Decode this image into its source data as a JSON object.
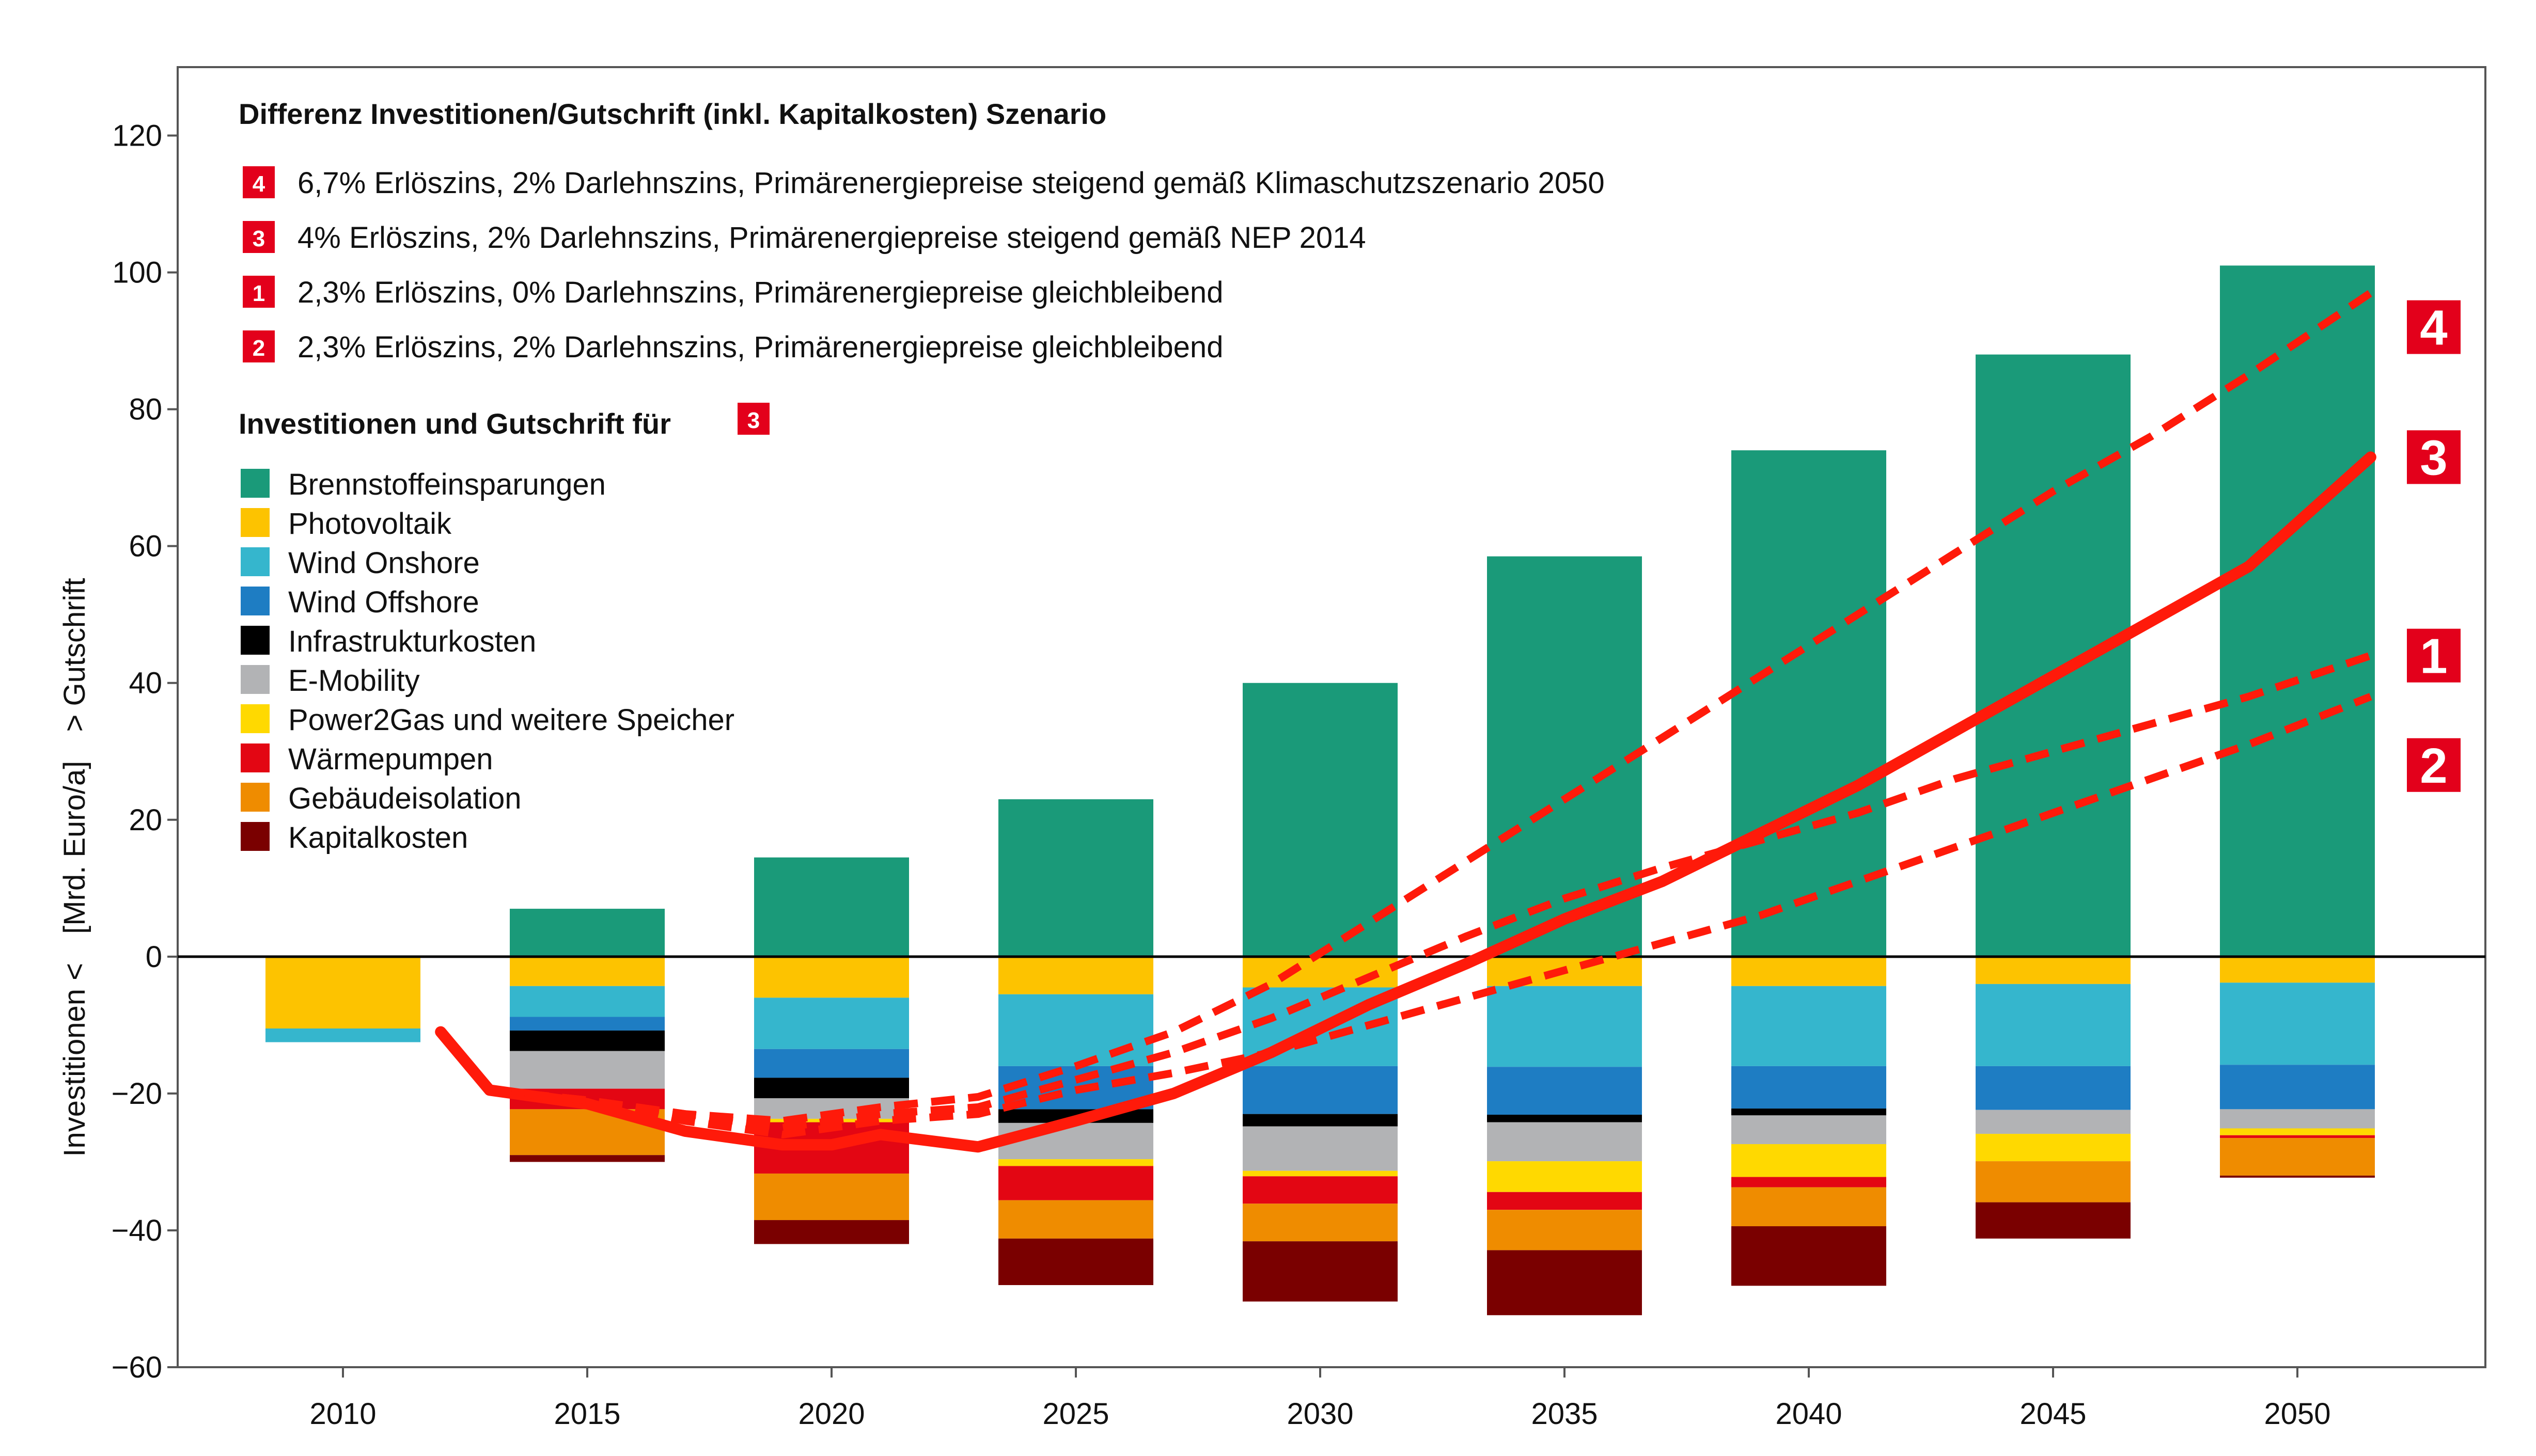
{
  "chart_data": {
    "type": "bar",
    "title": "Differenz Investitionen/Gutschrift (inkl. Kapitalkosten) Szenario",
    "ylabel_parts": [
      "Investitionen <",
      "[Mrd. Euro/a]",
      "> Gutschrift"
    ],
    "xlabel": "",
    "ylim": [
      -60,
      130
    ],
    "yticks": [
      -60,
      -40,
      -20,
      0,
      20,
      40,
      60,
      80,
      100,
      120
    ],
    "ytick_labels": [
      "−60",
      "−40",
      "−20",
      "0",
      "20",
      "40",
      "60",
      "80",
      "100",
      "120"
    ],
    "categories": [
      "2010",
      "2015",
      "2020",
      "2025",
      "2030",
      "2035",
      "2040",
      "2045",
      "2050"
    ],
    "grid": false,
    "legend_placement": "top-left",
    "stack_title": "Investitionen und Gutschrift für",
    "stack_title_badge": "3",
    "bar_series": [
      {
        "name": "Brennstoffeinsparungen",
        "color": "#1a9a79",
        "values": [
          0,
          7,
          14.5,
          23,
          40,
          58.5,
          74,
          88,
          101
        ]
      },
      {
        "name": "Photovoltaik",
        "color": "#fdc300",
        "values": [
          -10.5,
          -4.3,
          -6,
          -5.5,
          -4.5,
          -4.3,
          -4.3,
          -4,
          -3.8
        ]
      },
      {
        "name": "Wind Onshore",
        "color": "#35b6cd",
        "values": [
          -2,
          -4.5,
          -7.5,
          -10.5,
          -11.5,
          -11.8,
          -11.7,
          -12,
          -12
        ]
      },
      {
        "name": "Wind Offshore",
        "color": "#1e7dc3",
        "values": [
          0,
          -2,
          -4.2,
          -6.3,
          -7,
          -7,
          -6.2,
          -6.4,
          -6.5
        ]
      },
      {
        "name": "Infrastrukturkosten",
        "color": "#000000",
        "values": [
          0,
          -3,
          -3,
          -2,
          -1.8,
          -1.1,
          -1,
          0,
          0
        ]
      },
      {
        "name": "E-Mobility",
        "color": "#b2b3b5",
        "values": [
          0,
          -5.5,
          -3,
          -5.3,
          -6.5,
          -5.7,
          -4.2,
          -3.5,
          -2.8
        ]
      },
      {
        "name": "Power2Gas und weitere Speicher",
        "color": "#ffd900",
        "values": [
          0,
          0,
          -0.5,
          -1,
          -0.8,
          -4.5,
          -4.8,
          -4,
          -1
        ]
      },
      {
        "name": "Wärmepumpen",
        "color": "#e30613",
        "values": [
          0,
          -3,
          -7.5,
          -5,
          -4,
          -2.6,
          -1.5,
          0,
          -0.4
        ]
      },
      {
        "name": "Gebäudeisolation",
        "color": "#ef8c00",
        "values": [
          0,
          -6.7,
          -6.8,
          -5.6,
          -5.5,
          -5.9,
          -5.7,
          -6,
          -5.5
        ]
      },
      {
        "name": "Kapitalkosten",
        "color": "#7a0000",
        "values": [
          0,
          -1,
          -3.5,
          -6.8,
          -8.8,
          -9.5,
          -8.7,
          -5.3,
          -0.3
        ]
      }
    ],
    "line_x_ticks": {
      "2010": 2010,
      "2015": 2015,
      "2020": 2020,
      "2025": 2025,
      "2030": 2030,
      "2035": 2035,
      "2040": 2040,
      "2045": 2045,
      "2050": 2050
    },
    "line_series": [
      {
        "name": "6,7% Erlöszins, 2% Darlehnszins, Primärenergiepreise steigend gemäß Klimaschutzszenario 2050",
        "badge": "4",
        "style": "dashed",
        "x": [
          2012,
          2013,
          2015,
          2017,
          2019,
          2021,
          2023,
          2025,
          2027,
          2029,
          2031,
          2033,
          2035,
          2037,
          2039,
          2041,
          2043,
          2045,
          2047,
          2049,
          2051.5
        ],
        "y": [
          -11,
          -19.5,
          -21,
          -23,
          -24,
          -22,
          -20.5,
          -16,
          -11,
          -4,
          5,
          14,
          23,
          32,
          41,
          50,
          59,
          68,
          76,
          85,
          97
        ]
      },
      {
        "name": "4% Erlöszins, 2% Darlehnszins, Primärenergiepreise steigend gemäß NEP 2014",
        "badge": "3",
        "style": "solid",
        "x": [
          2012,
          2013,
          2015,
          2017,
          2019,
          2020,
          2021,
          2023,
          2025,
          2027,
          2029,
          2031,
          2033,
          2035,
          2037,
          2039,
          2041,
          2043,
          2045,
          2047,
          2049,
          2051.5
        ],
        "y": [
          -11,
          -19.5,
          -21.5,
          -25.5,
          -27.5,
          -27.5,
          -26,
          -27.8,
          -24,
          -20,
          -14,
          -7,
          -1,
          5.5,
          11,
          18,
          25,
          33,
          41,
          49,
          57,
          73
        ]
      },
      {
        "name": "2,3% Erlöszins, 0% Darlehnszins, Primärenergiepreise gleichbleibend",
        "badge": "1",
        "style": "dashed",
        "x": [
          2012,
          2013,
          2015,
          2017,
          2019,
          2021,
          2023,
          2025,
          2027,
          2029,
          2031,
          2033,
          2035,
          2037,
          2039,
          2041,
          2043,
          2045,
          2047,
          2049,
          2051.5
        ],
        "y": [
          -11,
          -19.5,
          -21,
          -23,
          -25,
          -23,
          -22,
          -18,
          -14,
          -9,
          -3,
          3,
          8.5,
          13,
          17,
          21,
          26,
          30,
          34,
          38,
          44
        ]
      },
      {
        "name": "2,3% Erlöszins, 2% Darlehnszins, Primärenergiepreise gleichbleibend",
        "badge": "2",
        "style": "dashed",
        "x": [
          2012,
          2013,
          2015,
          2017,
          2019,
          2021,
          2023,
          2025,
          2027,
          2029,
          2031,
          2033,
          2035,
          2037,
          2039,
          2041,
          2043,
          2045,
          2047,
          2049,
          2051.5
        ],
        "y": [
          -11,
          -19.5,
          -21,
          -24,
          -26,
          -24,
          -23,
          -19.5,
          -17,
          -14,
          -10,
          -6,
          -2,
          2,
          6,
          11,
          16,
          21,
          26,
          31,
          38
        ]
      }
    ],
    "line_color": "#ff1a0a",
    "badge_color": "#e3001b"
  }
}
